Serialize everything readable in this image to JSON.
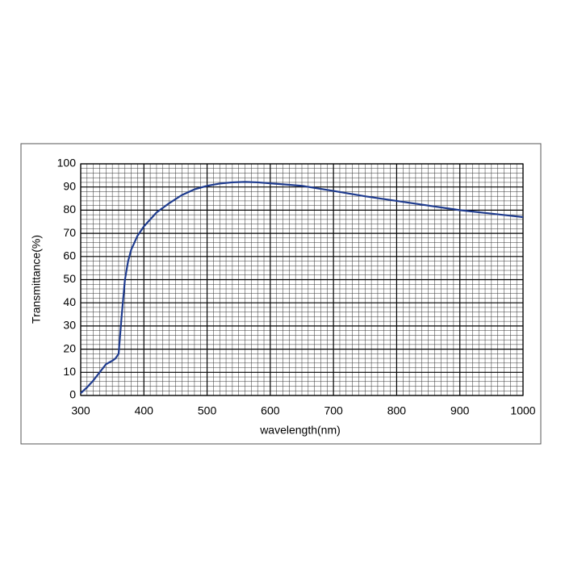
{
  "chart_data": {
    "type": "line",
    "x_label": "wavelength(nm)",
    "y_label": "Transmittance(%)",
    "x": [
      300,
      310,
      320,
      330,
      340,
      350,
      355,
      360,
      365,
      370,
      375,
      380,
      390,
      400,
      420,
      440,
      460,
      480,
      500,
      520,
      540,
      560,
      580,
      600,
      650,
      700,
      750,
      800,
      850,
      900,
      950,
      1000
    ],
    "series": [
      {
        "color": "#1f3c8f",
        "values": [
          1,
          3.5,
          6.5,
          10,
          13.5,
          15,
          16,
          18,
          35,
          50,
          58,
          63,
          69,
          73,
          79,
          83,
          86.5,
          89,
          90.5,
          91.5,
          92,
          92.2,
          92,
          91.6,
          90.5,
          88.3,
          86,
          84,
          82,
          80,
          78.5,
          77
        ]
      }
    ],
    "xlim": [
      300,
      1000
    ],
    "xticks": [
      300,
      400,
      500,
      600,
      700,
      800,
      900,
      1000
    ],
    "ylim": [
      0,
      100
    ],
    "yticks": [
      0,
      10,
      20,
      30,
      40,
      50,
      60,
      70,
      80,
      90,
      100
    ],
    "grid": true,
    "minor_grid": {
      "x": 10,
      "y": 2
    }
  }
}
